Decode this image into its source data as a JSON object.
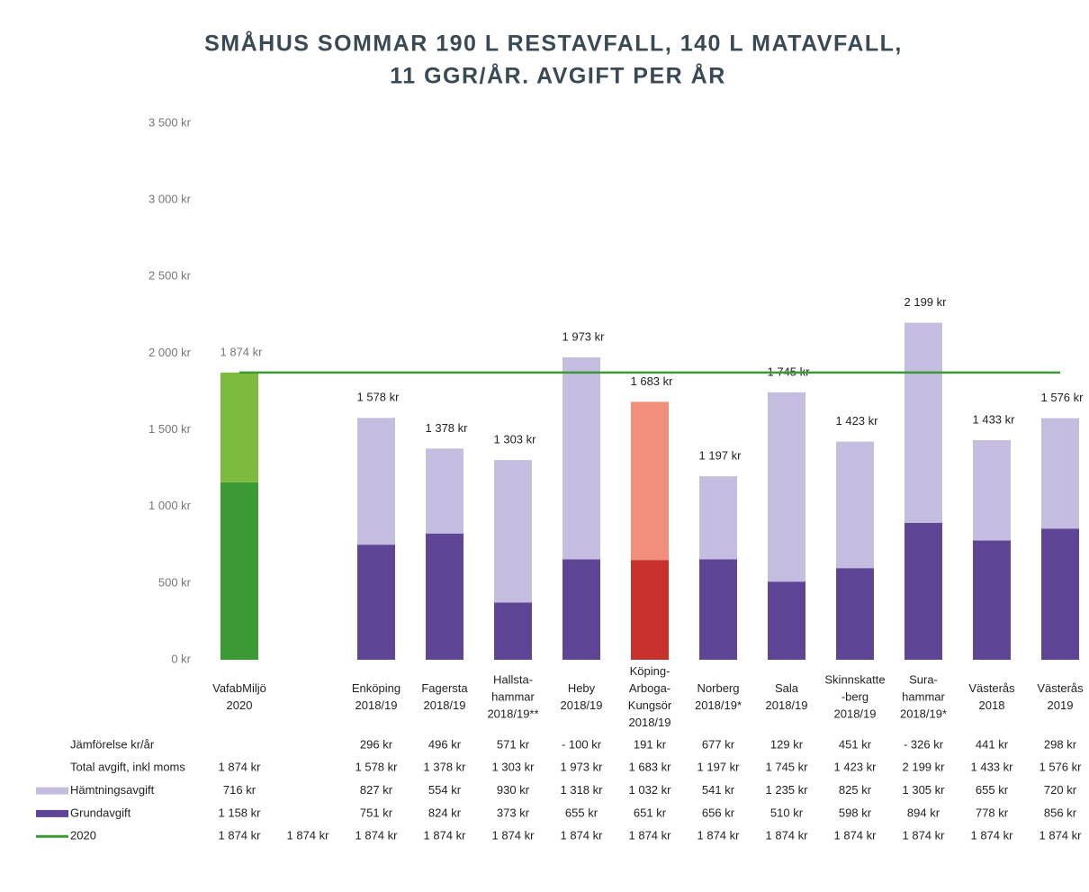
{
  "chart_data": {
    "type": "bar",
    "stacked": true,
    "title": [
      "SMÅHUS SOMMAR 190 L RESTAVFALL, 140 L MATAVFALL,",
      "11 GGR/ÅR. AVGIFT PER ÅR"
    ],
    "categories": [
      [
        "VafabMiljö",
        "2020"
      ],
      null,
      [
        "Enköping",
        "2018/19"
      ],
      [
        "Fagersta",
        "2018/19"
      ],
      [
        "Hallsta-",
        "hammar",
        "2018/19**"
      ],
      [
        "Heby",
        "2018/19"
      ],
      [
        "Köping-",
        "Arboga-",
        "Kungsör",
        "2018/19"
      ],
      [
        "Norberg",
        "2018/19*"
      ],
      [
        "Sala",
        "2018/19"
      ],
      [
        "Skinnskatte",
        "-berg",
        "2018/19"
      ],
      [
        "Sura-",
        "hammar",
        "2018/19*"
      ],
      [
        "Västerås",
        "2018"
      ],
      [
        "Västerås",
        "2019"
      ]
    ],
    "ylim": [
      0,
      3500
    ],
    "yticks": [
      {
        "value": 0,
        "label": "0 kr"
      },
      {
        "value": 500,
        "label": "500 kr"
      },
      {
        "value": 1000,
        "label": "1 000 kr"
      },
      {
        "value": 1500,
        "label": "1 500 kr"
      },
      {
        "value": 2000,
        "label": "2 000 kr"
      },
      {
        "value": 2500,
        "label": "2 500 kr"
      },
      {
        "value": 3000,
        "label": "3 000 kr"
      },
      {
        "value": 3500,
        "label": "3 500 kr"
      }
    ],
    "comparison": {
      "name": "Jämförelse kr/år",
      "values": [
        null,
        null,
        296,
        496,
        571,
        -100,
        191,
        677,
        129,
        451,
        -326,
        441,
        298
      ],
      "value_labels": [
        null,
        null,
        "296 kr",
        "496 kr",
        "571 kr",
        "- 100 kr",
        "191 kr",
        "677 kr",
        "129 kr",
        "451 kr",
        "- 326 kr",
        "441 kr",
        "298 kr"
      ]
    },
    "totals": {
      "name": "Total avgift, inkl moms",
      "values": [
        1874,
        null,
        1578,
        1378,
        1303,
        1973,
        1683,
        1197,
        1745,
        1423,
        2199,
        1433,
        1576
      ],
      "value_labels": [
        "1 874 kr",
        null,
        "1 578 kr",
        "1 378 kr",
        "1 303 kr",
        "1 973 kr",
        "1 683 kr",
        "1 197 kr",
        "1 745 kr",
        "1 423 kr",
        "2 199 kr",
        "1 433 kr",
        "1 576 kr"
      ]
    },
    "series": [
      {
        "name": "Grundavgift",
        "color": "#5e4596",
        "colors": [
          "#3c9a35",
          "#5e4596",
          "#5e4596",
          "#5e4596",
          "#5e4596",
          "#5e4596",
          "#c8322d",
          "#5e4596",
          "#5e4596",
          "#5e4596",
          "#5e4596",
          "#5e4596",
          "#5e4596"
        ],
        "values": [
          1158,
          null,
          751,
          824,
          373,
          655,
          651,
          656,
          510,
          598,
          894,
          778,
          856
        ],
        "value_labels": [
          "1 158 kr",
          null,
          "751 kr",
          "824 kr",
          "373 kr",
          "655 kr",
          "651 kr",
          "656 kr",
          "510 kr",
          "598 kr",
          "894 kr",
          "778 kr",
          "856 kr"
        ]
      },
      {
        "name": "Hämtningsavgift",
        "color": "#c5bde0",
        "colors": [
          "#7dbb3e",
          "#c5bde0",
          "#c5bde0",
          "#c5bde0",
          "#c5bde0",
          "#c5bde0",
          "#f28f7c",
          "#c5bde0",
          "#c5bde0",
          "#c5bde0",
          "#c5bde0",
          "#c5bde0",
          "#c5bde0"
        ],
        "values": [
          716,
          null,
          827,
          554,
          930,
          1318,
          1032,
          541,
          1235,
          825,
          1305,
          655,
          720
        ],
        "value_labels": [
          "716 kr",
          null,
          "827 kr",
          "554 kr",
          "930 kr",
          "1 318 kr",
          "1 032 kr",
          "541 kr",
          "1 235 kr",
          "825 kr",
          "1 305 kr",
          "655 kr",
          "720 kr"
        ]
      },
      {
        "name": "2020",
        "type": "line",
        "color": "#3c9a35",
        "values": [
          1874,
          1874,
          1874,
          1874,
          1874,
          1874,
          1874,
          1874,
          1874,
          1874,
          1874,
          1874,
          1874
        ],
        "value_labels": [
          "1 874 kr",
          "1 874 kr",
          "1 874 kr",
          "1 874 kr",
          "1 874 kr",
          "1 874 kr",
          "1 874 kr",
          "1 874 kr",
          "1 874 kr",
          "1 874 kr",
          "1 874 kr",
          "1 874 kr",
          "1 874 kr"
        ]
      }
    ]
  }
}
